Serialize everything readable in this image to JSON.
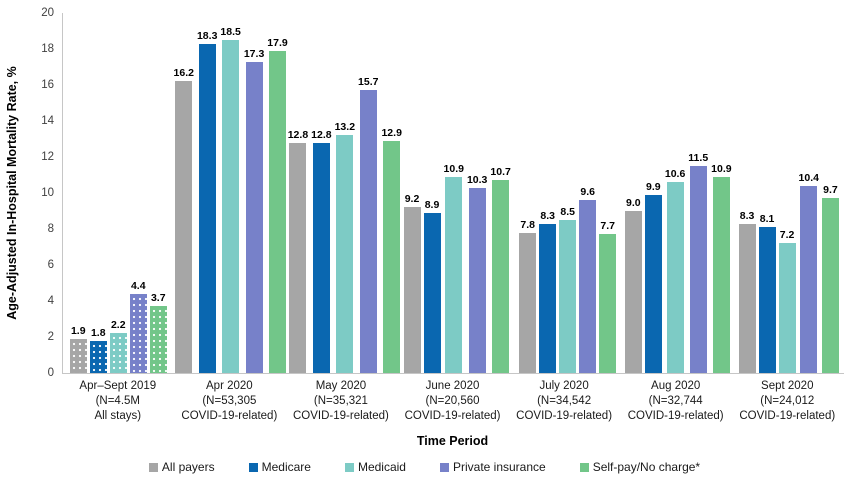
{
  "chart_data": {
    "type": "bar",
    "title": "",
    "xlabel": "Time Period",
    "ylabel": "Age-Adjusted In-Hospital Mortality Rate, %",
    "ylim": [
      0,
      20
    ],
    "ytick_step": 2,
    "grid": false,
    "legend_position": "bottom",
    "categories": [
      {
        "lines": [
          "Apr–Sept 2019",
          "(N=4.5M",
          "All stays)"
        ],
        "patterned": true
      },
      {
        "lines": [
          "Apr 2020",
          "(N=53,305",
          "COVID-19-related)"
        ],
        "patterned": false
      },
      {
        "lines": [
          "May 2020",
          "(N=35,321",
          "COVID-19-related)"
        ],
        "patterned": false
      },
      {
        "lines": [
          "June 2020",
          "(N=20,560",
          "COVID-19-related)"
        ],
        "patterned": false
      },
      {
        "lines": [
          "July 2020",
          "(N=34,542",
          "COVID-19-related)"
        ],
        "patterned": false
      },
      {
        "lines": [
          "Aug 2020",
          "(N=32,744",
          "COVID-19-related)"
        ],
        "patterned": false
      },
      {
        "lines": [
          "Sept 2020",
          "(N=24,012",
          "COVID-19-related)"
        ],
        "patterned": false
      }
    ],
    "series": [
      {
        "name": "All payers",
        "color": "#a6a6a6",
        "values": [
          1.9,
          16.2,
          12.8,
          9.2,
          7.8,
          9.0,
          8.3
        ]
      },
      {
        "name": "Medicare",
        "color": "#0a67b0",
        "values": [
          1.8,
          18.3,
          12.8,
          8.9,
          8.3,
          9.9,
          8.1
        ]
      },
      {
        "name": "Medicaid",
        "color": "#7dcbc5",
        "values": [
          2.2,
          18.5,
          13.2,
          10.9,
          8.5,
          10.6,
          7.2
        ]
      },
      {
        "name": "Private insurance",
        "color": "#7781c9",
        "values": [
          4.4,
          17.3,
          15.7,
          10.3,
          9.6,
          11.5,
          10.4
        ]
      },
      {
        "name": "Self-pay/No charge*",
        "color": "#72c689",
        "values": [
          3.7,
          17.9,
          12.9,
          10.7,
          7.7,
          10.9,
          9.7
        ]
      }
    ]
  }
}
